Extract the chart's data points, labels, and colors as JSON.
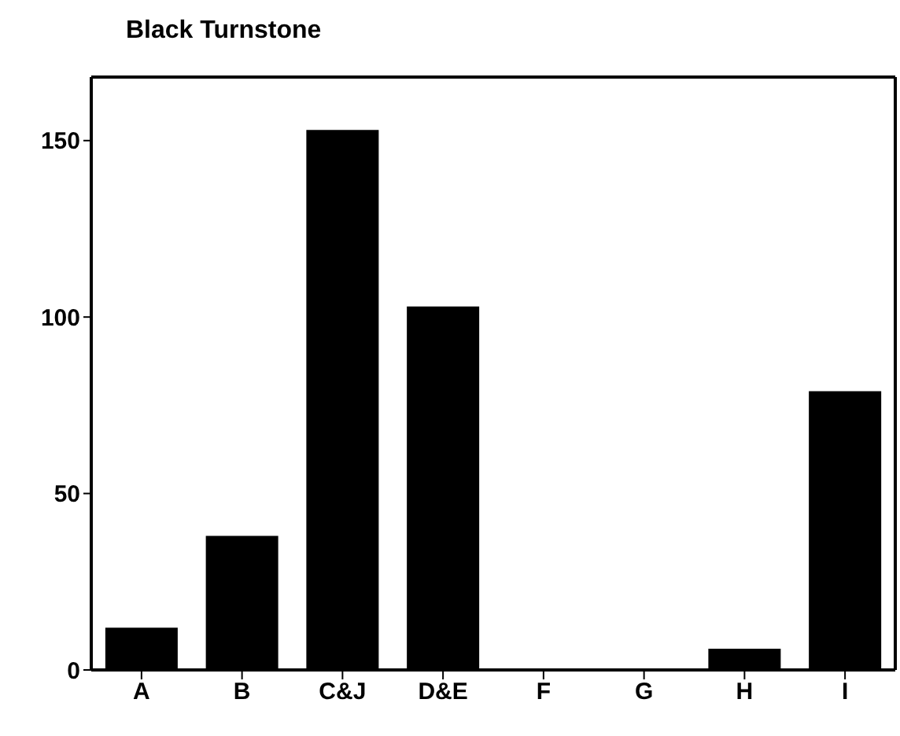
{
  "chart_data": {
    "type": "bar",
    "title": "Black Turnstone",
    "categories": [
      "A",
      "B",
      "C&J",
      "D&E",
      "F",
      "G",
      "H",
      "I"
    ],
    "values": [
      12,
      38,
      153,
      103,
      0,
      0,
      6,
      79
    ],
    "color": "#000000",
    "ylim": [
      0,
      168
    ],
    "yticks": [
      0,
      50,
      100,
      150
    ]
  }
}
